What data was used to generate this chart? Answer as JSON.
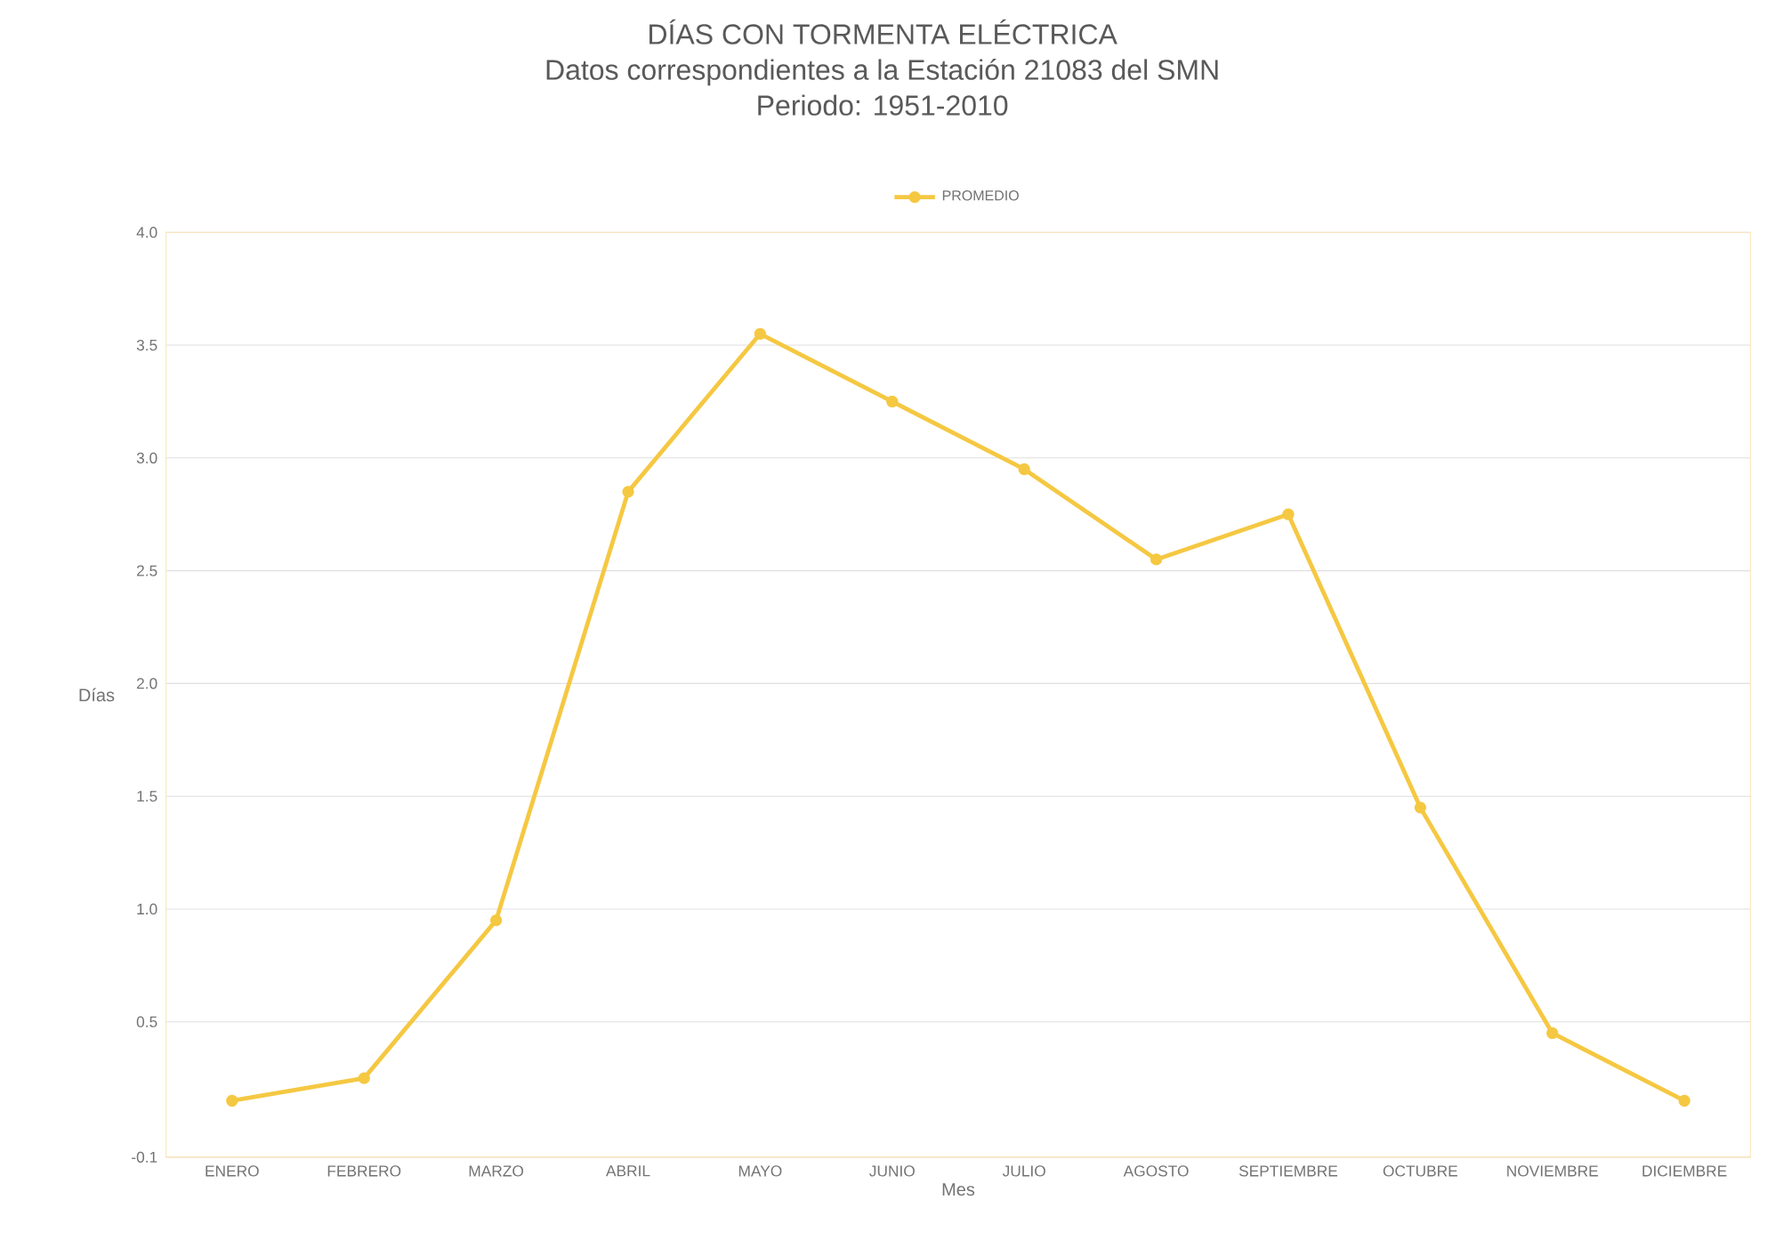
{
  "chart_data": {
    "type": "line",
    "title": "DÍAS CON TORMENTA ELÉCTRICA",
    "subtitle": "Datos correspondientes a la Estación 21083 del SMN\nPeriodo: 1951-2010",
    "xlabel": "Mes",
    "ylabel": "Días",
    "categories": [
      "ENERO",
      "FEBRERO",
      "MARZO",
      "ABRIL",
      "MAYO",
      "JUNIO",
      "JULIO",
      "AGOSTO",
      "SEPTIEMBRE",
      "OCTUBRE",
      "NOVIEMBRE",
      "DICIEMBRE"
    ],
    "series": [
      {
        "name": "PROMEDIO",
        "color": "#f5c842",
        "values": [
          0.15,
          0.25,
          0.95,
          2.85,
          3.55,
          3.25,
          2.95,
          2.55,
          2.75,
          1.45,
          0.45,
          0.15
        ]
      }
    ],
    "ylim": [
      -0.1,
      4.0
    ],
    "yticks": [
      {
        "value": -0.1,
        "label": "-0.1"
      },
      {
        "value": 0.5,
        "label": "0.5"
      },
      {
        "value": 1.0,
        "label": "1.0"
      },
      {
        "value": 1.5,
        "label": "1.5"
      },
      {
        "value": 2.0,
        "label": "2.0"
      },
      {
        "value": 2.5,
        "label": "2.5"
      },
      {
        "value": 3.0,
        "label": "3.0"
      },
      {
        "value": 3.5,
        "label": "3.5"
      },
      {
        "value": 4.0,
        "label": "4.0"
      }
    ],
    "grid": "y",
    "legend": "top",
    "marker": "circle",
    "line_style": "solid"
  }
}
